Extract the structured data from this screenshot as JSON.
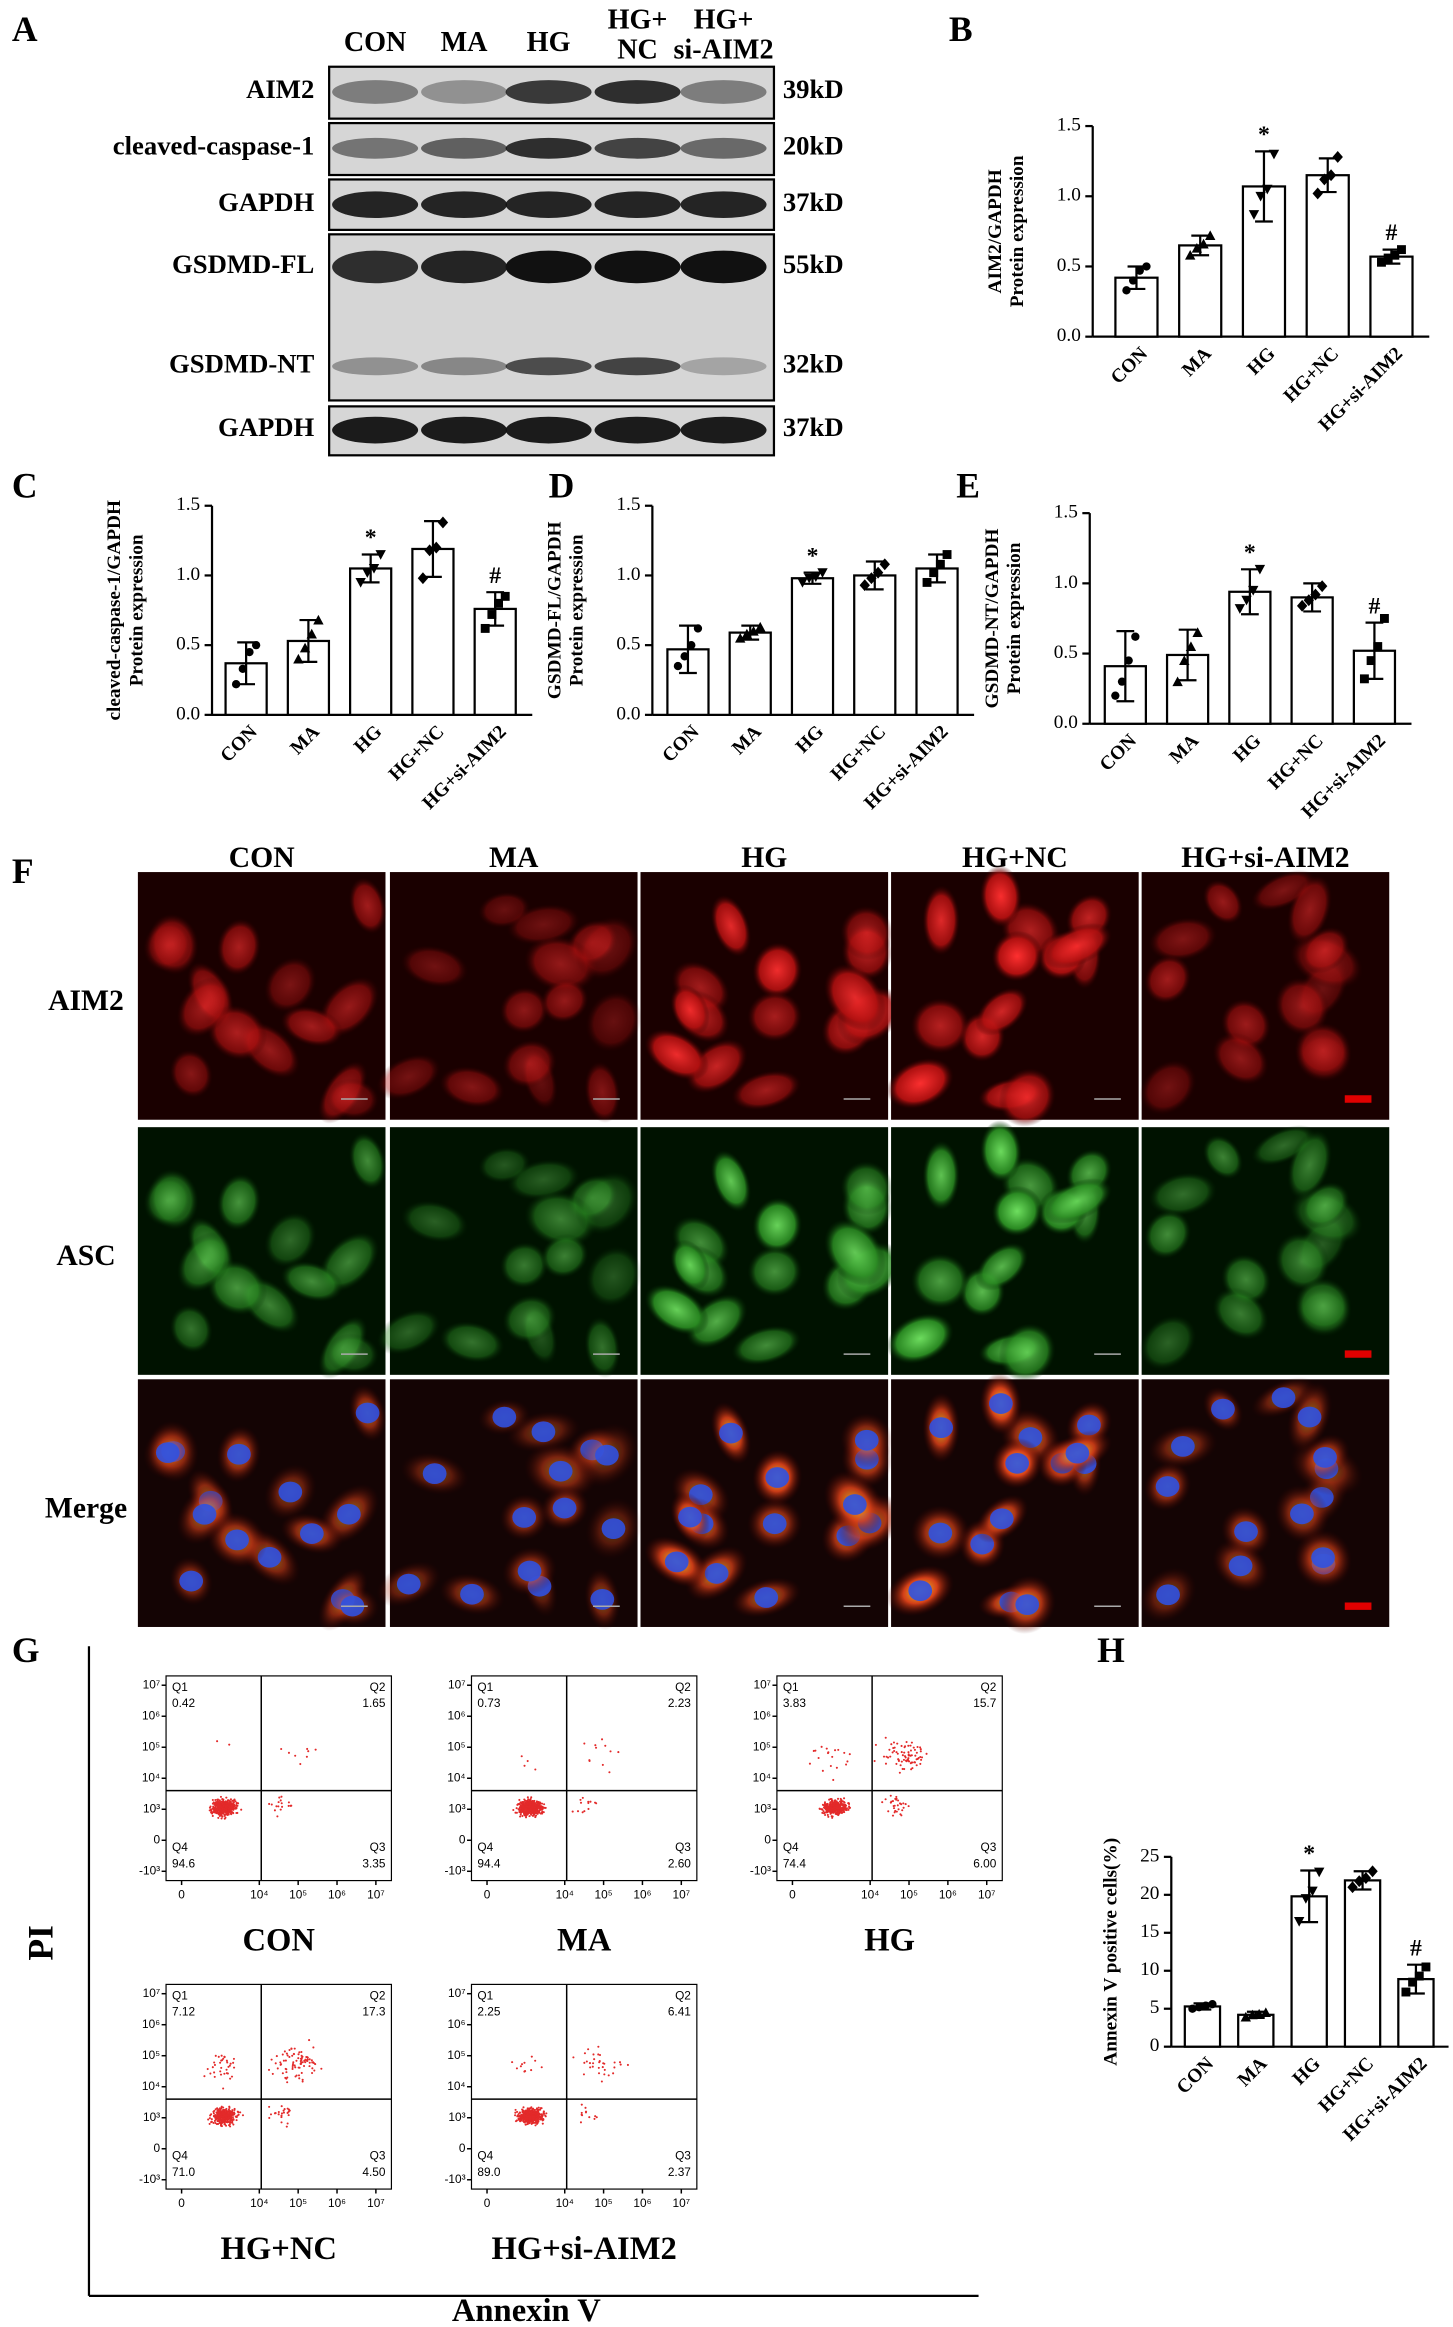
{
  "panel_labels": [
    "A",
    "B",
    "C",
    "D",
    "E",
    "F",
    "G",
    "H"
  ],
  "western_blot": {
    "lanes": [
      [
        "CON"
      ],
      [
        "MA"
      ],
      [
        "HG"
      ],
      [
        "HG+",
        "NC"
      ],
      [
        "HG+",
        "si-AIM2"
      ]
    ],
    "rows": [
      {
        "label": "AIM2",
        "size": "39kD"
      },
      {
        "label": "cleaved-caspase-1",
        "size": "20kD"
      },
      {
        "label": "GAPDH",
        "size": "37kD"
      },
      {
        "label": "GSDMD-FL",
        "size": "55kD"
      },
      {
        "label": "GSDMD-NT",
        "size": "32kD"
      },
      {
        "label": "GAPDH",
        "size": "37kD"
      }
    ]
  },
  "chart_data": [
    {
      "type": "bar",
      "ylabel": [
        "AIM2/GAPDH",
        "Protein expression"
      ],
      "categories": [
        "CON",
        "MA",
        "HG",
        "HG+NC",
        "HG+si-AIM2"
      ],
      "values": [
        0.42,
        0.65,
        1.07,
        1.15,
        0.57
      ],
      "errors": [
        0.08,
        0.07,
        0.25,
        0.12,
        0.05
      ],
      "points": [
        [
          0.33,
          0.4,
          0.47,
          0.5
        ],
        [
          0.58,
          0.63,
          0.66,
          0.72
        ],
        [
          0.87,
          1.0,
          1.05,
          1.3
        ],
        [
          1.02,
          1.12,
          1.15,
          1.28
        ],
        [
          0.53,
          0.56,
          0.58,
          0.62
        ]
      ],
      "annotations": [
        null,
        null,
        "*",
        null,
        "#"
      ],
      "color": "#ffffff",
      "ylim": [
        0,
        1.5
      ],
      "yticks": [
        {
          "value": 0,
          "label": "0.0"
        },
        {
          "value": 0.5,
          "label": "0.5"
        },
        {
          "value": 1,
          "label": "1.0"
        },
        {
          "value": 1.5,
          "label": "1.5"
        }
      ]
    },
    {
      "type": "bar",
      "ylabel": [
        "cleaved-caspase-1/GAPDH",
        "Protein expression"
      ],
      "categories": [
        "CON",
        "MA",
        "HG",
        "HG+NC",
        "HG+si-AIM2"
      ],
      "values": [
        0.37,
        0.53,
        1.05,
        1.19,
        0.76
      ],
      "errors": [
        0.15,
        0.15,
        0.1,
        0.2,
        0.12
      ],
      "points": [
        [
          0.22,
          0.33,
          0.45,
          0.5
        ],
        [
          0.4,
          0.48,
          0.58,
          0.68
        ],
        [
          0.95,
          1.02,
          1.05,
          1.15
        ],
        [
          0.98,
          1.18,
          1.2,
          1.38
        ],
        [
          0.62,
          0.72,
          0.8,
          0.85
        ]
      ],
      "annotations": [
        null,
        null,
        "*",
        null,
        "#"
      ],
      "color": "#ffffff",
      "ylim": [
        0,
        1.5
      ],
      "yticks": [
        {
          "value": 0,
          "label": "0.0"
        },
        {
          "value": 0.5,
          "label": "0.5"
        },
        {
          "value": 1,
          "label": "1.0"
        },
        {
          "value": 1.5,
          "label": "1.5"
        }
      ]
    },
    {
      "type": "bar",
      "ylabel": [
        "GSDMD-FL/GAPDH",
        "Protein expression"
      ],
      "categories": [
        "CON",
        "MA",
        "HG",
        "HG+NC",
        "HG+si-AIM2"
      ],
      "values": [
        0.47,
        0.59,
        0.98,
        1.0,
        1.05
      ],
      "errors": [
        0.17,
        0.05,
        0.04,
        0.1,
        0.1
      ],
      "points": [
        [
          0.35,
          0.42,
          0.5,
          0.62
        ],
        [
          0.55,
          0.58,
          0.6,
          0.63
        ],
        [
          0.95,
          0.98,
          0.99,
          1.02
        ],
        [
          0.93,
          0.98,
          1.02,
          1.08
        ],
        [
          0.95,
          1.02,
          1.08,
          1.15
        ]
      ],
      "annotations": [
        null,
        null,
        "*",
        null,
        null
      ],
      "color": "#ffffff",
      "ylim": [
        0,
        1.5
      ],
      "yticks": [
        {
          "value": 0,
          "label": "0.0"
        },
        {
          "value": 0.5,
          "label": "0.5"
        },
        {
          "value": 1,
          "label": "1.0"
        },
        {
          "value": 1.5,
          "label": "1.5"
        }
      ]
    },
    {
      "type": "bar",
      "ylabel": [
        "GSDMD-NT/GAPDH",
        "Protein expression"
      ],
      "categories": [
        "CON",
        "MA",
        "HG",
        "HG+NC",
        "HG+si-AIM2"
      ],
      "values": [
        0.41,
        0.49,
        0.94,
        0.9,
        0.52
      ],
      "errors": [
        0.25,
        0.18,
        0.16,
        0.1,
        0.2
      ],
      "points": [
        [
          0.2,
          0.3,
          0.45,
          0.62
        ],
        [
          0.3,
          0.45,
          0.55,
          0.65
        ],
        [
          0.82,
          0.88,
          0.95,
          1.1
        ],
        [
          0.84,
          0.88,
          0.92,
          0.98
        ],
        [
          0.32,
          0.45,
          0.55,
          0.75
        ]
      ],
      "annotations": [
        null,
        null,
        "*",
        null,
        "#"
      ],
      "color": "#ffffff",
      "ylim": [
        0,
        1.5
      ],
      "yticks": [
        {
          "value": 0,
          "label": "0.0"
        },
        {
          "value": 0.5,
          "label": "0.5"
        },
        {
          "value": 1,
          "label": "1.0"
        },
        {
          "value": 1.5,
          "label": "1.5"
        }
      ]
    },
    {
      "type": "bar",
      "ylabel": [
        "Annexin V positive cells(%)"
      ],
      "categories": [
        "CON",
        "MA",
        "HG",
        "HG+NC",
        "HG+si-AIM2"
      ],
      "values": [
        5.3,
        4.2,
        19.8,
        21.9,
        8.9
      ],
      "errors": [
        0.4,
        0.4,
        3.4,
        1.2,
        1.9
      ],
      "points": [
        [
          5.0,
          5.2,
          5.4,
          5.6
        ],
        [
          3.9,
          4.2,
          4.3,
          4.5
        ],
        [
          16.5,
          19.5,
          20.5,
          23.0
        ],
        [
          21.0,
          21.8,
          22.2,
          23.1
        ],
        [
          7.2,
          8.5,
          9.3,
          10.5
        ]
      ],
      "annotations": [
        null,
        null,
        "*",
        null,
        "#"
      ],
      "color": "#ffffff",
      "ylim": [
        0,
        25
      ],
      "yticks": [
        0,
        5,
        10,
        15,
        20,
        25
      ]
    }
  ],
  "if_panel": {
    "columns": [
      "CON",
      "MA",
      "HG",
      "HG+NC",
      "HG+si-AIM2"
    ],
    "rows": [
      "AIM2",
      "ASC",
      "Merge"
    ]
  },
  "flow": {
    "x_label": "Annexin V",
    "y_label": "PI",
    "quadrants": [
      "Q1",
      "Q2",
      "Q3",
      "Q4"
    ],
    "xticks": [
      0,
      {
        "value": 10000,
        "label": "10⁴"
      },
      {
        "value": 100000,
        "label": "10⁵"
      },
      {
        "value": 1000000,
        "label": "10⁶"
      },
      {
        "value": 10000000,
        "label": "10⁷"
      }
    ],
    "yticks": [
      {
        "value": 10000000,
        "label": "10⁷"
      },
      {
        "value": 1000000,
        "label": "10⁶"
      },
      {
        "value": 100000,
        "label": "10⁵"
      },
      {
        "value": 10000,
        "label": "10⁴"
      },
      {
        "value": 1000,
        "label": "10³"
      },
      0,
      {
        "value": -1000,
        "label": "-10³"
      }
    ],
    "plots": [
      {
        "name": "CON",
        "values": [
          0.42,
          1.65,
          3.35,
          94.6
        ],
        "value_labels": [
          "0.42",
          "1.65",
          "3.35",
          "94.6"
        ]
      },
      {
        "name": "MA",
        "values": [
          0.73,
          2.23,
          2.6,
          94.4
        ],
        "value_labels": [
          "0.73",
          "2.23",
          "2.60",
          "94.4"
        ]
      },
      {
        "name": "HG",
        "values": [
          3.83,
          15.7,
          6.0,
          74.4
        ],
        "value_labels": [
          "3.83",
          "15.7",
          "6.00",
          "74.4"
        ]
      },
      {
        "name": "HG+NC",
        "values": [
          7.12,
          17.3,
          4.5,
          71.0
        ],
        "value_labels": [
          "7.12",
          "17.3",
          "4.50",
          "71.0"
        ]
      },
      {
        "name": "HG+si-AIM2",
        "values": [
          2.25,
          6.41,
          2.37,
          89.0
        ],
        "value_labels": [
          "2.25",
          "6.41",
          "2.37",
          "89.0"
        ]
      }
    ]
  }
}
